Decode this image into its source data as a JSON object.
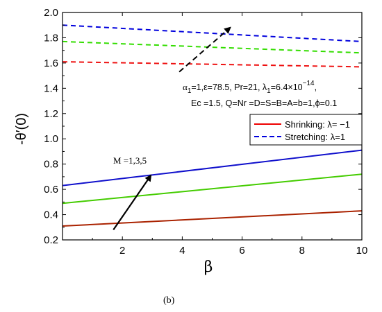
{
  "chart_data": {
    "type": "line",
    "xlabel": "β",
    "ylabel": "-θ′(0)",
    "xlim": [
      0,
      10
    ],
    "ylim": [
      0.2,
      2.0
    ],
    "xticks": [
      "2",
      "4",
      "6",
      "8",
      "10"
    ],
    "yticks": [
      "0.2",
      "0.4",
      "0.6",
      "0.8",
      "1.0",
      "1.2",
      "1.4",
      "1.6",
      "1.8",
      "2.0"
    ],
    "series": [
      {
        "group": "Stretching",
        "M": 1,
        "color": "#0000dd",
        "style": "dashed",
        "x": [
          0,
          10
        ],
        "y": [
          1.9,
          1.77
        ]
      },
      {
        "group": "Stretching",
        "M": 3,
        "color": "#33dd00",
        "style": "dashed",
        "x": [
          0,
          10
        ],
        "y": [
          1.77,
          1.68
        ]
      },
      {
        "group": "Stretching",
        "M": 5,
        "color": "#ee1111",
        "style": "dashed",
        "x": [
          0,
          10
        ],
        "y": [
          1.61,
          1.57
        ]
      },
      {
        "group": "Shrinking",
        "M": 1,
        "color": "#1010cc",
        "style": "solid",
        "x": [
          0,
          10
        ],
        "y": [
          0.63,
          0.91
        ]
      },
      {
        "group": "Shrinking",
        "M": 3,
        "color": "#44cc00",
        "style": "solid",
        "x": [
          0,
          10
        ],
        "y": [
          0.49,
          0.72
        ]
      },
      {
        "group": "Shrinking",
        "M": 5,
        "color": "#aa2200",
        "style": "solid",
        "x": [
          0,
          10
        ],
        "y": [
          0.31,
          0.43
        ]
      }
    ],
    "legend": {
      "placement": "right",
      "entries": [
        {
          "label": "Shrinking: λ= −1",
          "color": "#ee0000",
          "style": "solid"
        },
        {
          "label": "Stretching: λ=1",
          "color": "#0000dd",
          "style": "dashed"
        }
      ]
    },
    "annotations": {
      "params_line1": {
        "alpha": "α",
        "sub1": "1",
        "mid": "=1,ε=78.5, Pr=21, λ",
        "sub2": "1",
        "val": "=6.4×10",
        "exp": "−14",
        "end": ","
      },
      "params_line2": "Ec =1.5, Q=Nr =D=S=B=A=b=1,ϕ=0.1",
      "arrow_label": "M =1,3,5"
    },
    "caption": "(b)"
  }
}
